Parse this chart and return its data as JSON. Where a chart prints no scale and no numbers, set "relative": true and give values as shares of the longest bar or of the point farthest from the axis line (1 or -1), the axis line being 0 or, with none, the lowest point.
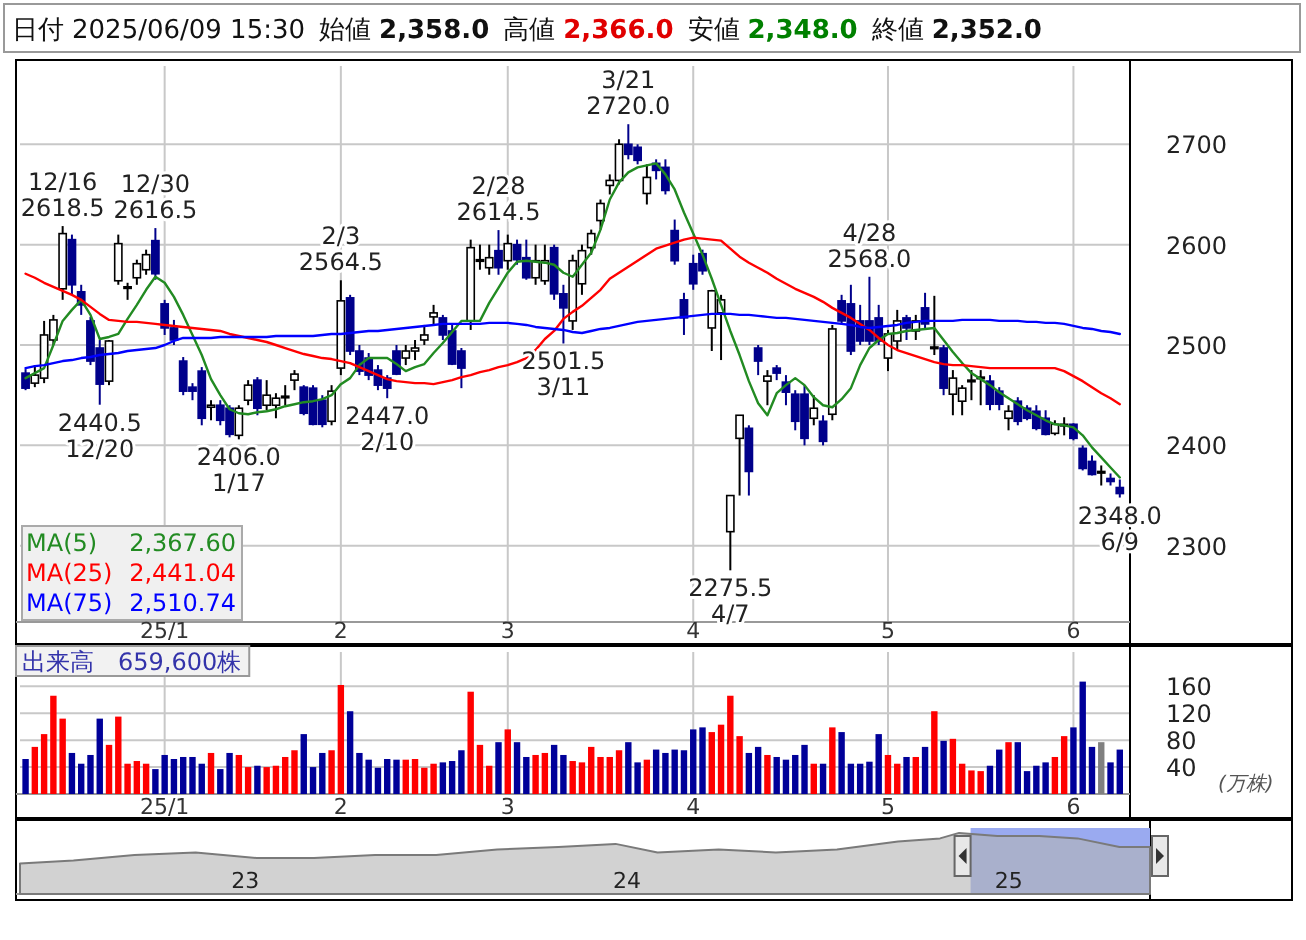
{
  "chart_data": [
    {
      "type": "candlestick",
      "annotations": [
        "日付",
        "2025/06/09 15:30",
        "始値",
        "2,358.0",
        "高値",
        "2,366.0",
        "安値",
        "2,348.0",
        "終値",
        "2,352.0",
        "2,367.60",
        "2,441.04",
        "2,510.74",
        {
          "text": "12/16 2618.5",
          "y": 2618.5
        },
        {
          "text": "2440.5 12/20",
          "y": 2440.5
        },
        {
          "text": "12/30 2616.5",
          "y": 2616.5
        },
        {
          "text": "2406.0 1/17",
          "y": 2406.0
        },
        {
          "text": "2/3 2564.5",
          "y": 2564.5
        },
        {
          "text": "2447.0 2/10",
          "y": 2447.0
        },
        {
          "text": "2/28 2614.5",
          "y": 2614.5
        },
        {
          "text": "2501.5 3/11",
          "y": 2501.5
        },
        {
          "text": "3/21 2720.0",
          "y": 2720.0
        },
        {
          "text": "2275.5 4/7",
          "y": 2275.5
        },
        {
          "text": "4/28 2568.0",
          "y": 2568.0
        },
        {
          "text": "2348.0 6/9",
          "y": 2348.0
        }
      ],
      "categories": [
        null,
        null,
        null,
        null,
        null,
        null,
        null,
        null,
        null,
        null,
        null,
        null,
        null,
        null,
        null,
        "25/1",
        null,
        null,
        null,
        null,
        null,
        null,
        null,
        null,
        null,
        null,
        null,
        null,
        null,
        null,
        null,
        null,
        null,
        null,
        "2",
        null,
        null,
        null,
        null,
        null,
        null,
        null,
        null,
        null,
        null,
        null,
        null,
        null,
        null,
        null,
        null,
        null,
        "3",
        null,
        null,
        null,
        null,
        null,
        null,
        null,
        null,
        null,
        null,
        null,
        null,
        null,
        null,
        null,
        null,
        null,
        null,
        null,
        "4",
        null,
        null,
        null,
        null,
        null,
        null,
        null,
        null,
        null,
        null,
        null,
        null,
        null,
        null,
        null,
        null,
        null,
        null,
        null,
        null,
        "5",
        null,
        null,
        null,
        null,
        null,
        null,
        null,
        null,
        null,
        null,
        null,
        null,
        null,
        null,
        null,
        null,
        null,
        null,
        null,
        "6",
        null,
        null,
        null,
        null,
        null
      ],
      "ohlc": [
        [
          2472,
          2476,
          2455,
          2457
        ],
        [
          2462,
          2480,
          2458,
          2470
        ],
        [
          2467,
          2524,
          2462,
          2510
        ],
        [
          2505,
          2530,
          2500,
          2525
        ],
        [
          2556,
          2618.5,
          2545,
          2611
        ],
        [
          2605,
          2610,
          2550,
          2560
        ],
        [
          2553,
          2560,
          2530,
          2540
        ],
        [
          2524,
          2528,
          2480,
          2484
        ],
        [
          2497,
          2505,
          2440.5,
          2461
        ],
        [
          2464,
          2505,
          2460,
          2504
        ],
        [
          2564,
          2610,
          2560,
          2601
        ],
        [
          2557,
          2562,
          2545,
          2558
        ],
        [
          2567,
          2585,
          2560,
          2581
        ],
        [
          2575,
          2595,
          2570,
          2590
        ],
        [
          2604,
          2616.5,
          2565,
          2571
        ],
        [
          2541,
          2545,
          2510,
          2517
        ],
        [
          2517,
          2525,
          2500,
          2505
        ],
        [
          2484,
          2488,
          2450,
          2454
        ],
        [
          2458,
          2462,
          2445,
          2454
        ],
        [
          2474,
          2478,
          2420,
          2427
        ],
        [
          2438,
          2445,
          2425,
          2440
        ],
        [
          2440,
          2445,
          2420,
          2425
        ],
        [
          2437,
          2440,
          2408,
          2411
        ],
        [
          2410,
          2440,
          2406.0,
          2437
        ],
        [
          2445,
          2465,
          2440,
          2460
        ],
        [
          2465,
          2468,
          2430,
          2437
        ],
        [
          2440,
          2465,
          2435,
          2450
        ],
        [
          2440,
          2452,
          2427,
          2447
        ],
        [
          2448,
          2460,
          2440,
          2449
        ],
        [
          2465,
          2475,
          2455,
          2471
        ],
        [
          2458,
          2460,
          2430,
          2432
        ],
        [
          2457,
          2460,
          2420,
          2421
        ],
        [
          2445,
          2450,
          2418,
          2421
        ],
        [
          2424,
          2460,
          2420,
          2454
        ],
        [
          2477,
          2564.5,
          2470,
          2544
        ],
        [
          2547,
          2550,
          2490,
          2494
        ],
        [
          2494,
          2500,
          2470,
          2474
        ],
        [
          2487,
          2492,
          2465,
          2470
        ],
        [
          2475,
          2480,
          2455,
          2460
        ],
        [
          2467,
          2470,
          2447.0,
          2457
        ],
        [
          2494,
          2500,
          2470,
          2471
        ],
        [
          2487,
          2500,
          2480,
          2494
        ],
        [
          2494,
          2505,
          2485,
          2497
        ],
        [
          2505,
          2520,
          2500,
          2510
        ],
        [
          2528,
          2540,
          2520,
          2532
        ],
        [
          2527,
          2530,
          2505,
          2510
        ],
        [
          2514,
          2520,
          2480,
          2481
        ],
        [
          2494,
          2497,
          2457,
          2477
        ],
        [
          2524,
          2605,
          2515,
          2597
        ],
        [
          2584,
          2600,
          2575,
          2585
        ],
        [
          2577,
          2600,
          2570,
          2587
        ],
        [
          2594,
          2614.5,
          2570,
          2577
        ],
        [
          2584,
          2610,
          2575,
          2601
        ],
        [
          2600,
          2605,
          2580,
          2585
        ],
        [
          2587,
          2605,
          2565,
          2567
        ],
        [
          2567,
          2600,
          2560,
          2584
        ],
        [
          2564,
          2600,
          2560,
          2584
        ],
        [
          2597,
          2600,
          2545,
          2551
        ],
        [
          2551,
          2560,
          2501.5,
          2537
        ],
        [
          2524,
          2590,
          2515,
          2584
        ],
        [
          2561,
          2600,
          2550,
          2594
        ],
        [
          2597,
          2615,
          2590,
          2611
        ],
        [
          2624,
          2645,
          2615,
          2641
        ],
        [
          2659,
          2670,
          2650,
          2664
        ],
        [
          2664,
          2705,
          2660,
          2700
        ],
        [
          2700,
          2720.0,
          2685,
          2690
        ],
        [
          2697,
          2700,
          2680,
          2684
        ],
        [
          2651,
          2680,
          2640,
          2667
        ],
        [
          2681,
          2685,
          2665,
          2674
        ],
        [
          2677,
          2685,
          2650,
          2654
        ],
        [
          2614,
          2625,
          2580,
          2584
        ],
        [
          2545,
          2552,
          2510,
          2527
        ],
        [
          2581,
          2590,
          2555,
          2561
        ],
        [
          2591,
          2595,
          2570,
          2574
        ],
        [
          2517,
          2555,
          2494,
          2554
        ],
        [
          2532,
          2550,
          2485,
          2545
        ],
        [
          2314,
          2350,
          2275.5,
          2350
        ],
        [
          2407,
          2430,
          2350,
          2430
        ],
        [
          2417,
          2420,
          2350,
          2374
        ],
        [
          2497,
          2500,
          2470,
          2484
        ],
        [
          2464,
          2475,
          2440,
          2469
        ],
        [
          2477,
          2480,
          2465,
          2472
        ],
        [
          2463,
          2470,
          2440,
          2453
        ],
        [
          2451,
          2455,
          2415,
          2424
        ],
        [
          2451,
          2460,
          2400,
          2407
        ],
        [
          2427,
          2450,
          2420,
          2437
        ],
        [
          2424,
          2430,
          2400,
          2404
        ],
        [
          2431,
          2520,
          2425,
          2516
        ],
        [
          2544,
          2550,
          2520,
          2524
        ],
        [
          2541,
          2560,
          2490,
          2494
        ],
        [
          2524,
          2540,
          2500,
          2504
        ],
        [
          2524,
          2568.0,
          2500,
          2504
        ],
        [
          2527,
          2540,
          2500,
          2504
        ],
        [
          2487,
          2515,
          2474,
          2511
        ],
        [
          2504,
          2535,
          2495,
          2524
        ],
        [
          2527,
          2530,
          2505,
          2517
        ],
        [
          2514,
          2530,
          2505,
          2524
        ],
        [
          2537,
          2552,
          2515,
          2521
        ],
        [
          2497,
          2549,
          2490,
          2498
        ],
        [
          2497,
          2500,
          2450,
          2457
        ],
        [
          2451,
          2475,
          2430,
          2467
        ],
        [
          2444,
          2460,
          2430,
          2457
        ],
        [
          2464,
          2475,
          2445,
          2465
        ],
        [
          2467,
          2475,
          2440,
          2468
        ],
        [
          2464,
          2470,
          2435,
          2441
        ],
        [
          2454,
          2458,
          2435,
          2441
        ],
        [
          2427,
          2440,
          2415,
          2434
        ],
        [
          2444,
          2448,
          2420,
          2424
        ],
        [
          2437,
          2440,
          2425,
          2427
        ],
        [
          2434,
          2440,
          2415,
          2417
        ],
        [
          2427,
          2435,
          2410,
          2411
        ],
        [
          2412,
          2425,
          2410,
          2421
        ],
        [
          2420,
          2428,
          2410,
          2421
        ],
        [
          2421,
          2422,
          2405,
          2407
        ],
        [
          2397,
          2400,
          2375,
          2377
        ],
        [
          2384,
          2390,
          2370,
          2371
        ],
        [
          2374,
          2380,
          2360,
          2374
        ],
        [
          2367,
          2372,
          2360,
          2364
        ],
        [
          2358,
          2366,
          2348,
          2352
        ]
      ],
      "ylim": [
        2224,
        2778
      ],
      "yticks": [
        2300,
        2400,
        2500,
        2600,
        2700
      ],
      "grid": true,
      "legend": "bottom left",
      "series": [
        {
          "name": "MA(5)",
          "type": "line",
          "color": "#228b22",
          "values": [
            2467,
            2472,
            2477,
            2500,
            2524,
            2535,
            2545,
            2530,
            2506,
            2508,
            2511,
            2526,
            2540,
            2555,
            2568,
            2562,
            2548,
            2530,
            2510,
            2490,
            2466,
            2450,
            2436,
            2432,
            2431,
            2433,
            2434,
            2436,
            2439,
            2441,
            2443,
            2444,
            2446,
            2450,
            2461,
            2467,
            2480,
            2487,
            2487,
            2487,
            2481,
            2474,
            2478,
            2481,
            2492,
            2502,
            2513,
            2524,
            2524,
            2524,
            2542,
            2557,
            2572,
            2583,
            2584,
            2583,
            2582,
            2580,
            2572,
            2568,
            2580,
            2592,
            2615,
            2645,
            2662,
            2672,
            2677,
            2679,
            2681,
            2670,
            2655,
            2632,
            2611,
            2590,
            2566,
            2540,
            2514,
            2490,
            2464,
            2442,
            2430,
            2452,
            2460,
            2467,
            2460,
            2448,
            2440,
            2438,
            2446,
            2457,
            2480,
            2497,
            2505,
            2511,
            2512,
            2514,
            2515,
            2516,
            2517,
            2505,
            2493,
            2482,
            2472,
            2466,
            2460,
            2453,
            2447,
            2441,
            2435,
            2430,
            2425,
            2421,
            2420,
            2418,
            2410,
            2398,
            2388,
            2378,
            2368
          ]
        },
        {
          "name": "MA(25)",
          "type": "line",
          "color": "#ff0000",
          "values": [
            2571,
            2567,
            2562,
            2558,
            2554,
            2550,
            2545,
            2538,
            2531,
            2525,
            2524,
            2523,
            2523,
            2522,
            2521,
            2520,
            2519,
            2518,
            2517,
            2516,
            2515,
            2514,
            2511,
            2509,
            2507,
            2505,
            2503,
            2500,
            2497,
            2494,
            2491,
            2489,
            2487,
            2486,
            2484,
            2482,
            2478,
            2474,
            2470,
            2466,
            2464,
            2463,
            2462,
            2462,
            2461,
            2463,
            2465,
            2468,
            2470,
            2473,
            2475,
            2478,
            2480,
            2483,
            2487,
            2495,
            2506,
            2514,
            2526,
            2533,
            2539,
            2547,
            2555,
            2566,
            2572,
            2578,
            2584,
            2590,
            2596,
            2599,
            2602,
            2605,
            2607,
            2606,
            2605,
            2604,
            2596,
            2588,
            2582,
            2577,
            2572,
            2566,
            2561,
            2556,
            2552,
            2548,
            2543,
            2537,
            2532,
            2527,
            2521,
            2515,
            2507,
            2500,
            2495,
            2492,
            2489,
            2486,
            2483,
            2481,
            2480,
            2480,
            2479,
            2478,
            2477,
            2477,
            2477,
            2477,
            2477,
            2477,
            2477,
            2477,
            2474,
            2469,
            2464,
            2458,
            2452,
            2447,
            2441
          ]
        },
        {
          "name": "MA(75)",
          "type": "line",
          "color": "#0000ff",
          "values": [
            2477,
            2479,
            2480,
            2482,
            2484,
            2485,
            2487,
            2488,
            2490,
            2491,
            2492,
            2494,
            2495,
            2496,
            2497,
            2500,
            2504,
            2507,
            2507,
            2507,
            2507,
            2508,
            2508,
            2508,
            2508,
            2508,
            2508,
            2509,
            2509,
            2509,
            2509,
            2509,
            2510,
            2511,
            2511,
            2512,
            2513,
            2514,
            2514,
            2515,
            2516,
            2517,
            2518,
            2519,
            2520,
            2521,
            2521,
            2521,
            2521,
            2521,
            2522,
            2522,
            2522,
            2521,
            2520,
            2518,
            2517,
            2516,
            2515,
            2513,
            2512,
            2514,
            2516,
            2517,
            2519,
            2521,
            2523,
            2524,
            2525,
            2526,
            2527,
            2528,
            2529,
            2530,
            2531,
            2531,
            2531,
            2530,
            2530,
            2529,
            2528,
            2527,
            2527,
            2526,
            2525,
            2524,
            2523,
            2522,
            2521,
            2520,
            2518,
            2517,
            2518,
            2519,
            2520,
            2522,
            2523,
            2524,
            2524,
            2524,
            2524,
            2525,
            2525,
            2525,
            2525,
            2524,
            2524,
            2524,
            2523,
            2523,
            2522,
            2522,
            2521,
            2519,
            2517,
            2516,
            2514,
            2513,
            2511
          ]
        }
      ]
    },
    {
      "type": "bar",
      "title": "出来高　659,600株",
      "ylabel": "(万株)",
      "categories": [
        null,
        null,
        null,
        null,
        null,
        null,
        null,
        null,
        null,
        null,
        null,
        null,
        null,
        null,
        null,
        "25/1",
        null,
        null,
        null,
        null,
        null,
        null,
        null,
        null,
        null,
        null,
        null,
        null,
        null,
        null,
        null,
        null,
        null,
        null,
        "2",
        null,
        null,
        null,
        null,
        null,
        null,
        null,
        null,
        null,
        null,
        null,
        null,
        null,
        null,
        null,
        null,
        null,
        "3",
        null,
        null,
        null,
        null,
        null,
        null,
        null,
        null,
        null,
        null,
        null,
        null,
        null,
        null,
        null,
        null,
        null,
        null,
        null,
        "4",
        null,
        null,
        null,
        null,
        null,
        null,
        null,
        null,
        null,
        null,
        null,
        null,
        null,
        null,
        null,
        null,
        null,
        null,
        null,
        null,
        "5",
        null,
        null,
        null,
        null,
        null,
        null,
        null,
        null,
        null,
        null,
        null,
        null,
        null,
        null,
        null,
        null,
        null,
        null,
        null,
        "6",
        null,
        null,
        null,
        null,
        null
      ],
      "values": [
        52,
        70,
        89,
        146,
        112,
        61,
        45,
        58,
        112,
        73,
        115,
        45,
        49,
        45,
        37,
        58,
        52,
        55,
        55,
        45,
        61,
        37,
        61,
        58,
        40,
        42,
        40,
        42,
        55,
        65,
        89,
        40,
        61,
        65,
        162,
        123,
        61,
        51,
        39,
        52,
        51,
        51,
        52,
        39,
        45,
        47,
        49,
        65,
        152,
        73,
        42,
        77,
        96,
        77,
        55,
        58,
        61,
        73,
        58,
        49,
        47,
        70,
        55,
        55,
        65,
        77,
        47,
        51,
        66,
        61,
        66,
        65,
        96,
        99,
        92,
        103,
        146,
        86,
        61,
        70,
        58,
        55,
        51,
        58,
        73,
        45,
        45,
        99,
        92,
        45,
        45,
        48,
        89,
        58,
        45,
        55,
        55,
        70,
        123,
        79,
        82,
        45,
        35,
        34,
        42,
        66,
        77,
        77,
        34,
        42,
        47,
        55,
        86,
        99,
        167,
        70,
        77,
        47,
        66
      ],
      "colors": [
        "#000099",
        "#ff0000",
        "#ff0000",
        "#ff0000",
        "#ff0000",
        "#000099",
        "#000099",
        "#000099",
        "#000099",
        "#ff0000",
        "#ff0000",
        "#ff0000",
        "#ff0000",
        "#ff0000",
        "#000099",
        "#000099",
        "#000099",
        "#000099",
        "#000099",
        "#000099",
        "#ff0000",
        "#000099",
        "#000099",
        "#ff0000",
        "#ff0000",
        "#000099",
        "#ff0000",
        "#ff0000",
        "#ff0000",
        "#ff0000",
        "#000099",
        "#000099",
        "#000099",
        "#ff0000",
        "#ff0000",
        "#000099",
        "#000099",
        "#000099",
        "#000099",
        "#000099",
        "#000099",
        "#ff0000",
        "#ff0000",
        "#ff0000",
        "#ff0000",
        "#000099",
        "#000099",
        "#000099",
        "#ff0000",
        "#ff0000",
        "#ff0000",
        "#000099",
        "#ff0000",
        "#000099",
        "#000099",
        "#ff0000",
        "#ff0000",
        "#000099",
        "#000099",
        "#ff0000",
        "#ff0000",
        "#ff0000",
        "#ff0000",
        "#ff0000",
        "#ff0000",
        "#000099",
        "#000099",
        "#ff0000",
        "#000099",
        "#000099",
        "#000099",
        "#000099",
        "#000099",
        "#000099",
        "#ff0000",
        "#ff0000",
        "#ff0000",
        "#ff0000",
        "#000099",
        "#000099",
        "#ff0000",
        "#000099",
        "#000099",
        "#000099",
        "#000099",
        "#ff0000",
        "#000099",
        "#ff0000",
        "#000099",
        "#000099",
        "#000099",
        "#000099",
        "#000099",
        "#ff0000",
        "#ff0000",
        "#000099",
        "#ff0000",
        "#000099",
        "#ff0000",
        "#000099",
        "#ff0000",
        "#ff0000",
        "#ff0000",
        "#ff0000",
        "#000099",
        "#000099",
        "#ff0000",
        "#000099",
        "#000099",
        "#000099",
        "#000099",
        "#ff0000",
        "#ff0000",
        "#000099",
        "#000099",
        "#000099",
        "#808080",
        "#000099",
        "#000099"
      ],
      "ylim": [
        0,
        211
      ],
      "yticks": [
        40,
        80,
        120,
        160
      ],
      "grid": true
    },
    {
      "type": "area",
      "relative": true,
      "color": "#b4b4b4",
      "x": [
        2022.41,
        2022.55,
        2022.71,
        2022.87,
        2023.03,
        2023.18,
        2023.34,
        2023.5,
        2023.66,
        2023.82,
        2023.97,
        2024.08,
        2024.24,
        2024.39,
        2024.55,
        2024.71,
        2024.82,
        2024.87,
        2024.97,
        2025.08,
        2025.18,
        2025.29,
        2025.37
      ],
      "values": [
        0.5,
        0.55,
        0.64,
        0.68,
        0.59,
        0.59,
        0.64,
        0.64,
        0.73,
        0.77,
        0.82,
        0.68,
        0.73,
        0.68,
        0.73,
        0.86,
        0.91,
        1,
        0.95,
        0.95,
        0.91,
        0.77,
        0.77
      ],
      "xlim": [
        2022.41,
        2025.37
      ],
      "xticks": [
        {
          "value": 2023,
          "label": "23"
        },
        {
          "value": 2024,
          "label": "24"
        },
        {
          "value": 2025,
          "label": "25"
        }
      ],
      "bands": [
        {
          "axis": "x",
          "from": 2024.9,
          "to": 2025.37,
          "color": "#9aaaf0"
        }
      ]
    }
  ]
}
